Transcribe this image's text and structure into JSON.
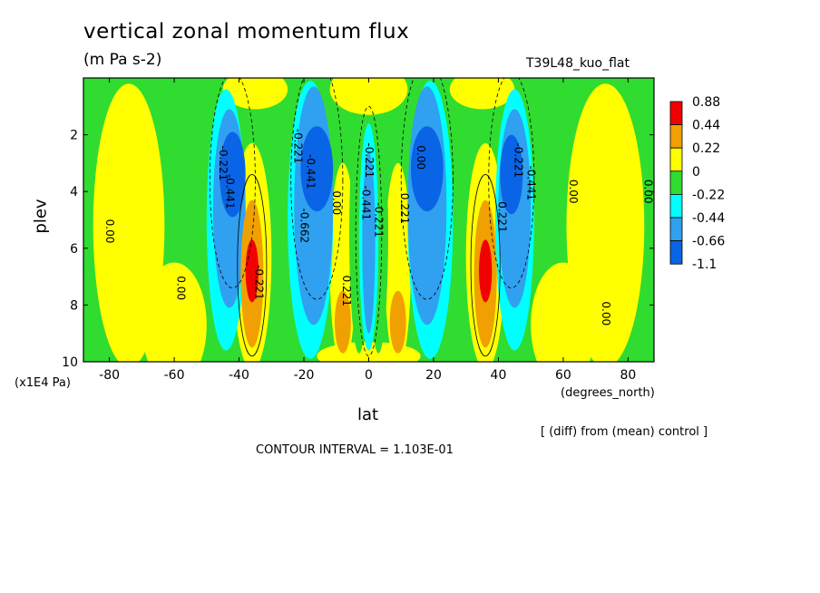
{
  "chart_data": {
    "type": "heatmap",
    "subtype": "filled-contour",
    "title": "vertical zonal momentum flux",
    "units": "(m Pa s-2)",
    "run_label": "T39L48_kuo_flat",
    "xlabel": "lat",
    "x_units": "(degrees_north)",
    "ylabel": "plev",
    "y_multiplier": "(x1E4 Pa)",
    "xlim": [
      -88,
      88
    ],
    "ylim": [
      10,
      0
    ],
    "x_ticks": [
      -80,
      -60,
      -40,
      -20,
      0,
      20,
      40,
      60,
      80
    ],
    "x_tick_labels": [
      "-80",
      "-60",
      "-40",
      "-20",
      "0",
      "20",
      "40",
      "60",
      "80"
    ],
    "y_ticks": [
      2,
      4,
      6,
      8,
      10
    ],
    "y_tick_labels": [
      "2",
      "4",
      "6",
      "8",
      "10"
    ],
    "y_axis_inverted": true,
    "levels": [
      {
        "label": "0.88",
        "color": "#f00000"
      },
      {
        "label": "0.44",
        "color": "#f0a000"
      },
      {
        "label": "0.22",
        "color": "#ffff00"
      },
      {
        "label": "0",
        "color": "#30dc30"
      },
      {
        "label": "-0.22",
        "color": "#00ffff"
      },
      {
        "label": "-0.44",
        "color": "#30a0f0"
      },
      {
        "label": "-0.66",
        "color": "#0a64e6"
      },
      {
        "label": "-1.1",
        "color": "#0a64e6"
      }
    ],
    "contour_labels": [
      "0.00",
      "-0.221",
      "-0.441",
      "-0.221",
      "-0.441",
      "-0.662",
      "0.00",
      "-0.221",
      "0.221",
      "-0.221",
      "-0.441",
      "-0.221",
      "0.221",
      "0.00",
      "0.221",
      "-0.221",
      "-0.441",
      "0.00",
      "0.00",
      "0.00",
      "0.00"
    ],
    "annotations": [
      "[ (diff) from (mean) control ]",
      "CONTOUR INTERVAL = 1.103E-01"
    ],
    "features": [
      {
        "lat": -36,
        "plev": 6.8,
        "value": 0.9
      },
      {
        "lat": 36,
        "plev": 6.8,
        "value": 0.9
      },
      {
        "lat": -42,
        "plev": 3.4,
        "value": -0.9
      },
      {
        "lat": 44,
        "plev": 3.4,
        "value": -0.9
      },
      {
        "lat": -16,
        "plev": 3.2,
        "value": -1.0
      },
      {
        "lat": 18,
        "plev": 3.2,
        "value": -1.0
      },
      {
        "lat": 0,
        "plev": 5.5,
        "value": -0.5
      },
      {
        "lat": -8,
        "plev": 8.6,
        "value": 0.4
      },
      {
        "lat": 9,
        "plev": 8.6,
        "value": 0.4
      }
    ]
  }
}
